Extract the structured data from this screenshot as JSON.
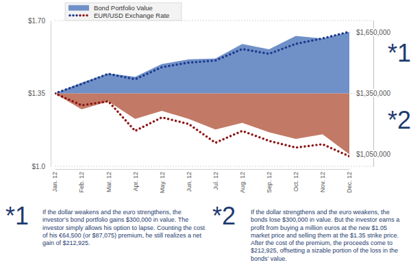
{
  "chart_data": {
    "type": "line",
    "categories": [
      "Jan. 12",
      "Feb. 12",
      "Mar. 12",
      "Apr. 12",
      "May. 12",
      "Jun. 12",
      "Jul. 12",
      "Aug. 12",
      "Sep. 12",
      "Oct. 12",
      "Nov. 12",
      "Dec. 12"
    ],
    "series": [
      {
        "name": "Bond Portfolio Value",
        "type": "area",
        "axis": "y2",
        "color": "#7090c8",
        "values": [
          1350000,
          1403000,
          1449000,
          1432000,
          1495000,
          1518000,
          1522000,
          1594000,
          1568000,
          1634000,
          1621000,
          1654000
        ]
      },
      {
        "name": "Bond Portfolio Value",
        "type": "area",
        "axis": "y2",
        "color": "#c27a66",
        "values": [
          1350000,
          1271000,
          1310000,
          1224000,
          1264000,
          1224000,
          1172000,
          1205000,
          1158000,
          1125000,
          1148000,
          1049000
        ]
      },
      {
        "name": "EUR/USD Exchange Rate",
        "type": "line",
        "line_style": "dotted",
        "color": "#1c3a8c",
        "values": [
          1.35,
          1.395,
          1.444,
          1.418,
          1.476,
          1.498,
          1.508,
          1.563,
          1.54,
          1.588,
          1.614,
          1.646
        ]
      },
      {
        "name": "EUR/USD Exchange Rate",
        "type": "line",
        "line_style": "dotted",
        "color": "#8c1414",
        "values": [
          1.35,
          1.293,
          1.312,
          1.17,
          1.235,
          1.203,
          1.113,
          1.17,
          1.122,
          1.09,
          1.106,
          1.048
        ]
      }
    ],
    "ylim": [
      1.0,
      1.7
    ],
    "yticks": [
      {
        "value": 1.7,
        "label": "$1.70"
      },
      {
        "value": 1.35,
        "label": "$1.35"
      },
      {
        "value": 1.0,
        "label": "$1.0"
      }
    ],
    "y2lim": [
      990000,
      1710000
    ],
    "y2ticks": [
      {
        "value": 1650000,
        "label": "$1,650,000"
      },
      {
        "value": 1350000,
        "label": "$1,350,000"
      },
      {
        "value": 1050000,
        "label": "$1,050,000"
      }
    ],
    "grid": true,
    "legend": "upper left",
    "annotations": [
      {
        "label": "*1",
        "text": "If the dollar weakens and the euro strengthens, the investor’s bond portfolio gains $300,000 in value. The investor simply allows his option to lapse. Counting the cost of his €64,500 (or $87,075) premium, he still realizes a net gain of $212,925."
      },
      {
        "label": "*2",
        "text": "If the dollar strengthens and the euro weakens, the bonds lose $300,000 in value. But the investor earns a profit from buying a million euros at the new $1.05 market price and selling them at the $1.35 strike price. After the cost of the premium, the proceeds come to $212,925, offsetting a sizable portion of the loss in the bonds’ value."
      }
    ]
  }
}
